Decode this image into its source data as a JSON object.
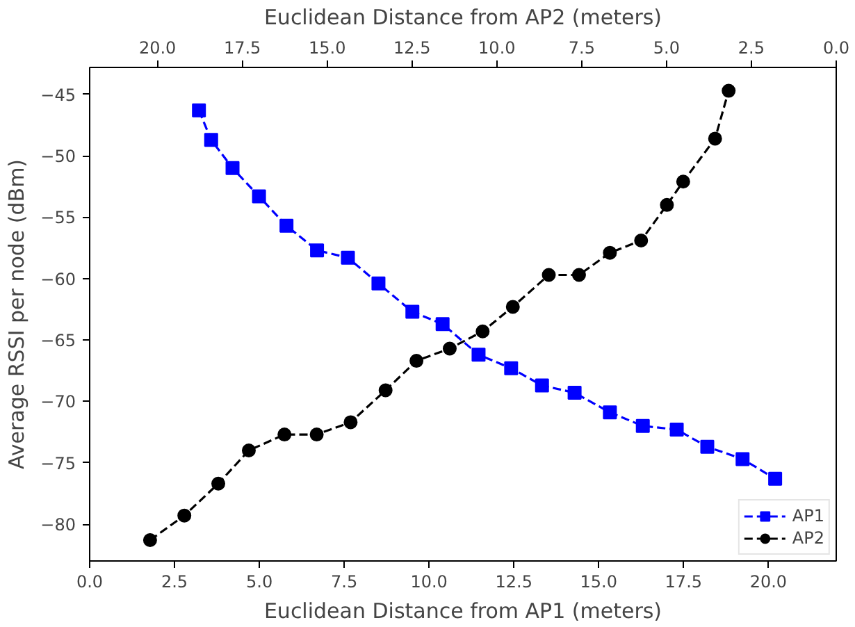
{
  "chart_data": {
    "type": "line",
    "xlabel": "Euclidean Distance from AP1 (meters)",
    "x2label": "Euclidean Distance from AP2 (meters)",
    "ylabel": "Average RSSI per node (dBm)",
    "xlim": [
      0,
      22
    ],
    "x2lim": [
      22,
      0
    ],
    "ylim": [
      -83.0,
      -42.8
    ],
    "xticks": [
      {
        "value": 0,
        "label": "0.0"
      },
      {
        "value": 2.5,
        "label": "2.5"
      },
      {
        "value": 5,
        "label": "5.0"
      },
      {
        "value": 7.5,
        "label": "7.5"
      },
      {
        "value": 10,
        "label": "10.0"
      },
      {
        "value": 12.5,
        "label": "12.5"
      },
      {
        "value": 15,
        "label": "15.0"
      },
      {
        "value": 17.5,
        "label": "17.5"
      },
      {
        "value": 20,
        "label": "20.0"
      }
    ],
    "x2ticks": [
      {
        "value": 20,
        "label": "20.0"
      },
      {
        "value": 17.5,
        "label": "17.5"
      },
      {
        "value": 15,
        "label": "15.0"
      },
      {
        "value": 12.5,
        "label": "12.5"
      },
      {
        "value": 10,
        "label": "10.0"
      },
      {
        "value": 7.5,
        "label": "7.5"
      },
      {
        "value": 5,
        "label": "5.0"
      },
      {
        "value": 2.5,
        "label": "2.5"
      },
      {
        "value": 0,
        "label": "0.0"
      }
    ],
    "yticks": [
      {
        "value": -80,
        "label": "−80"
      },
      {
        "value": -75,
        "label": "−75"
      },
      {
        "value": -70,
        "label": "−70"
      },
      {
        "value": -65,
        "label": "−65"
      },
      {
        "value": -60,
        "label": "−60"
      },
      {
        "value": -55,
        "label": "−55"
      },
      {
        "value": -50,
        "label": "−50"
      },
      {
        "value": -45,
        "label": "−45"
      }
    ],
    "grid": false,
    "legend": "bottom right",
    "line_style": "dashed",
    "series": [
      {
        "name": "AP1",
        "color": "#0000ff",
        "marker": "square",
        "x": [
          3.22,
          3.58,
          4.21,
          4.99,
          5.8,
          6.7,
          7.61,
          8.51,
          9.51,
          10.4,
          11.46,
          12.42,
          13.33,
          14.29,
          15.33,
          16.3,
          17.3,
          18.2,
          19.24,
          20.2
        ],
        "values": [
          -46.3,
          -48.7,
          -51.0,
          -53.3,
          -55.7,
          -57.7,
          -58.3,
          -60.4,
          -62.7,
          -63.7,
          -66.2,
          -67.3,
          -68.7,
          -69.3,
          -70.9,
          -72.0,
          -72.3,
          -73.7,
          -74.7,
          -76.3
        ]
      },
      {
        "name": "AP2",
        "color": "#000000",
        "marker": "circle",
        "x": [
          1.78,
          2.79,
          3.79,
          4.69,
          5.74,
          6.69,
          7.69,
          8.72,
          9.63,
          10.61,
          11.58,
          12.47,
          13.53,
          14.42,
          15.33,
          16.25,
          17.01,
          17.49,
          18.43,
          18.83
        ],
        "values": [
          -81.3,
          -79.3,
          -76.7,
          -74.0,
          -72.7,
          -72.7,
          -71.7,
          -69.1,
          -66.7,
          -65.7,
          -64.3,
          -62.3,
          -59.7,
          -59.7,
          -57.9,
          -56.9,
          -54.0,
          -52.1,
          -48.6,
          -44.7
        ]
      }
    ]
  }
}
